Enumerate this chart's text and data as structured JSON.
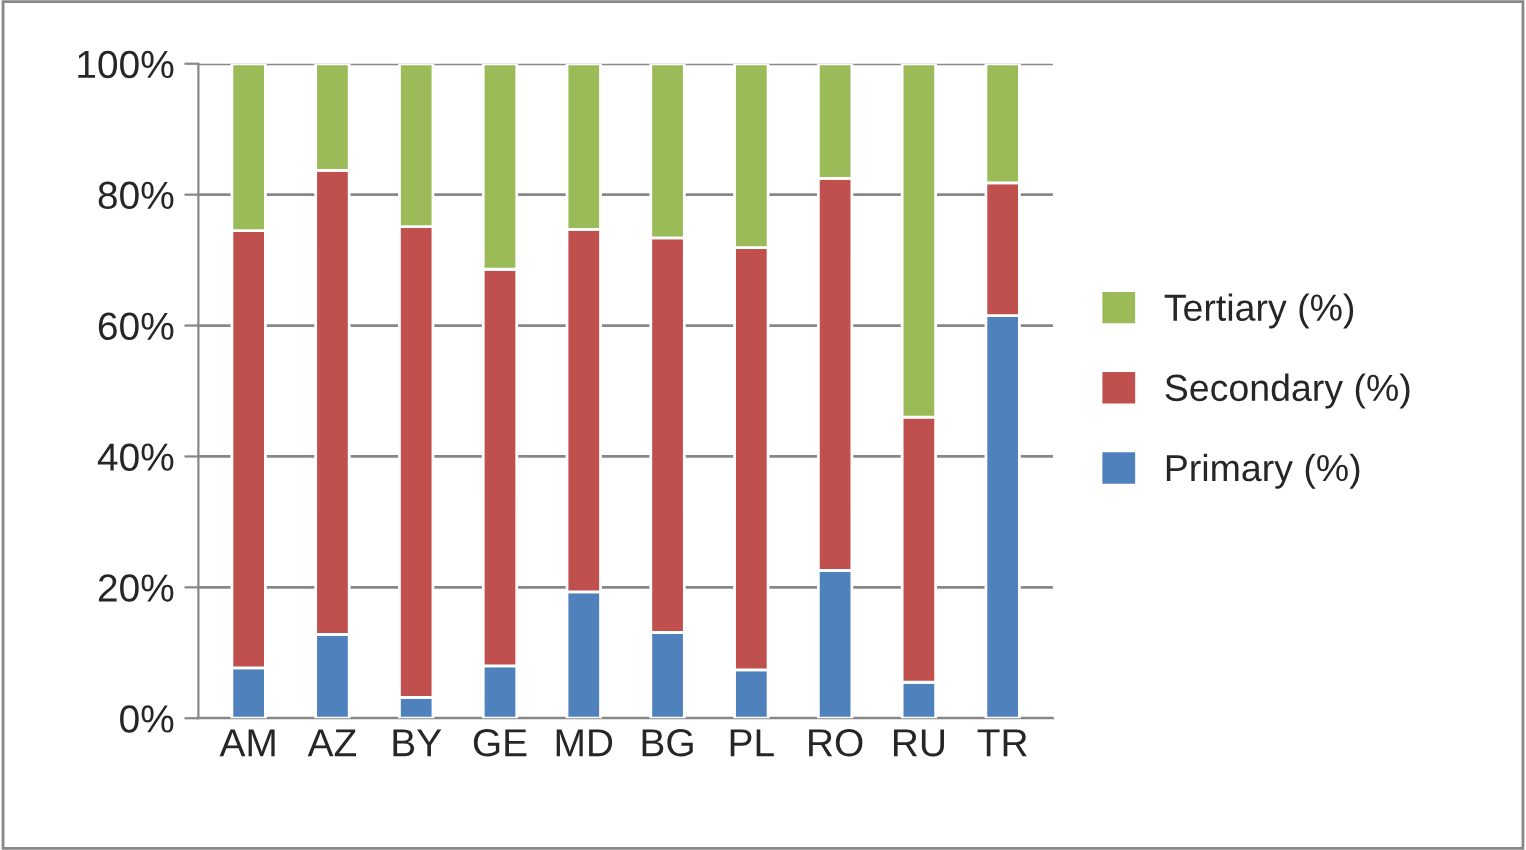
{
  "chart_data": {
    "type": "bar",
    "stacked": true,
    "categories": [
      "AM",
      "AZ",
      "BY",
      "GE",
      "MD",
      "BG",
      "PL",
      "RO",
      "RU",
      "TR"
    ],
    "series": [
      {
        "name": "Primary (%)",
        "color": "#4f81bd",
        "values": [
          7.7,
          12.8,
          3.2,
          8.0,
          19.3,
          13.1,
          7.4,
          22.6,
          5.5,
          61.5
        ]
      },
      {
        "name": "Secondary (%)",
        "color": "#c0504d",
        "values": [
          66.8,
          70.9,
          71.9,
          60.6,
          55.4,
          60.3,
          64.5,
          59.9,
          40.5,
          20.3
        ]
      },
      {
        "name": "Tertiary (%)",
        "color": "#9bbb59",
        "values": [
          25.5,
          16.3,
          24.9,
          31.4,
          25.3,
          26.6,
          28.1,
          17.5,
          54.0,
          18.2
        ]
      }
    ],
    "ylim": [
      0,
      100
    ],
    "yticks": [
      {
        "value": 0,
        "label": "0%"
      },
      {
        "value": 20,
        "label": "20%"
      },
      {
        "value": 40,
        "label": "40%"
      },
      {
        "value": 60,
        "label": "60%"
      },
      {
        "value": 80,
        "label": "80%"
      },
      {
        "value": 100,
        "label": "100%"
      }
    ],
    "grid": "y",
    "legend": "right"
  }
}
